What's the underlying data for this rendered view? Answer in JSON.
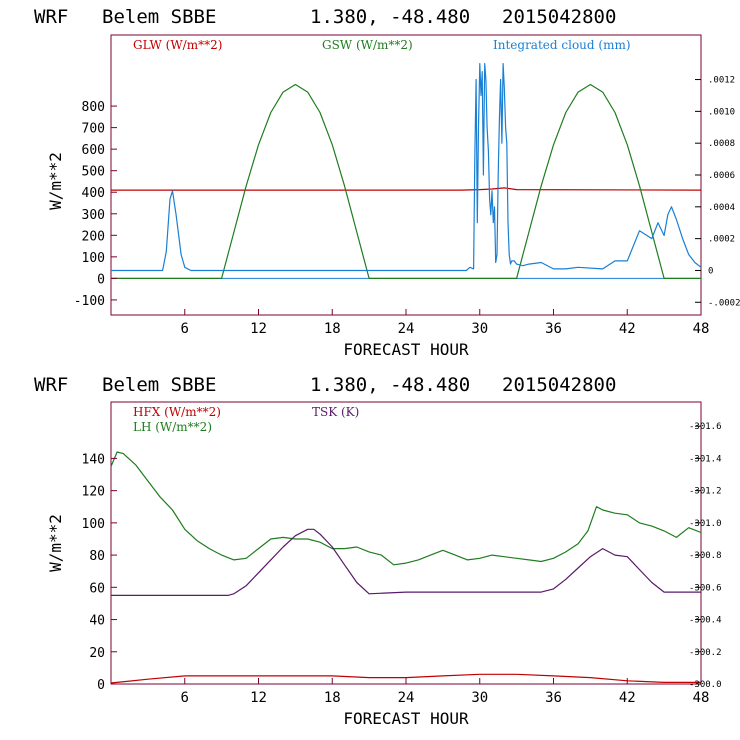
{
  "chart_data": [
    {
      "type": "line",
      "header": {
        "model": "WRF",
        "station": "Belem SBBE",
        "coords": "1.380, -48.480",
        "date": "2015042800"
      },
      "xlabel": "FORECAST HOUR",
      "ylabel": "W/m**2",
      "xlim": [
        0,
        48
      ],
      "ylim": [
        -170,
        1130
      ],
      "x_ticks": [
        "6",
        "12",
        "18",
        "24",
        "30",
        "36",
        "42",
        "48"
      ],
      "y_ticks": [
        "-100",
        "0",
        "100",
        "200",
        "300",
        "400",
        "500",
        "600",
        "700",
        "800"
      ],
      "right_ylim": [
        -0.00028,
        0.00148
      ],
      "right_ticks": [
        "-.0002",
        "0",
        ".0002",
        ".0004",
        ".0006",
        ".0008",
        ".0010",
        ".0012"
      ],
      "series": [
        {
          "name": "GLW (W/m**2)",
          "color": "#c00000",
          "x": [
            0,
            28.5,
            30,
            31,
            32,
            33,
            48
          ],
          "values": [
            410,
            410,
            412,
            415,
            420,
            412,
            410
          ]
        },
        {
          "name": "GSW (W/m**2)",
          "color": "#1e7d1e",
          "x": [
            0,
            9,
            10,
            11,
            12,
            13,
            14,
            15,
            16,
            17,
            18,
            19,
            20,
            21,
            33,
            34,
            35,
            36,
            37,
            38,
            39,
            40,
            41,
            42,
            43,
            44,
            45,
            48
          ],
          "values": [
            0,
            0,
            215,
            430,
            620,
            770,
            865,
            900,
            865,
            770,
            620,
            430,
            215,
            0,
            0,
            215,
            430,
            620,
            770,
            865,
            900,
            865,
            770,
            620,
            430,
            215,
            0,
            0
          ]
        },
        {
          "name": "Integrated cloud (mm)",
          "color": "#1a7fd4",
          "axis": "right",
          "x": [
            0,
            4.2,
            4.5,
            4.8,
            5.0,
            5.3,
            5.7,
            6.0,
            6.5,
            28.9,
            29.2,
            29.5,
            29.6,
            29.7,
            29.8,
            29.9,
            30.0,
            30.1,
            30.2,
            30.3,
            30.4,
            30.5,
            30.6,
            30.7,
            30.8,
            30.9,
            31.0,
            31.1,
            31.2,
            31.3,
            31.4,
            31.5,
            31.6,
            31.7,
            31.8,
            31.9,
            32.0,
            32.1,
            32.2,
            32.3,
            32.4,
            32.5,
            32.6,
            32.8,
            33.0,
            33.5,
            34,
            35,
            36,
            37,
            38,
            40,
            41,
            42,
            43,
            44,
            44.5,
            45,
            45.3,
            45.6,
            46,
            46.5,
            47,
            47.5,
            48
          ],
          "values": [
            0,
            0,
            0.00012,
            0.00045,
            0.0005,
            0.00035,
            0.0001,
            2e-05,
            0,
            0,
            2e-05,
            1e-05,
            0.0007,
            0.0012,
            0.0003,
            0.0009,
            0.0013,
            0.0011,
            0.00125,
            0.0006,
            0.0013,
            0.0012,
            0.0009,
            0.00075,
            0.00045,
            0.00035,
            0.0005,
            0.0003,
            0.0004,
            5e-05,
            0.0001,
            0.0006,
            0.00095,
            0.0012,
            0.0008,
            0.0013,
            0.00115,
            0.0009,
            0.0008,
            0.0003,
            0.0001,
            4e-05,
            6e-05,
            6e-05,
            4e-05,
            3e-05,
            4e-05,
            5e-05,
            1e-05,
            1e-05,
            2e-05,
            1e-05,
            6e-05,
            6e-05,
            0.00025,
            0.0002,
            0.0003,
            0.00022,
            0.00035,
            0.0004,
            0.00032,
            0.0002,
            0.0001,
            5e-05,
            2e-05
          ]
        }
      ]
    },
    {
      "type": "line",
      "header": {
        "model": "WRF",
        "station": "Belem SBBE",
        "coords": "1.380, -48.480",
        "date": "2015042800"
      },
      "xlabel": "FORECAST HOUR",
      "ylabel": "W/m**2",
      "xlim": [
        0,
        48
      ],
      "ylim": [
        0,
        175
      ],
      "x_ticks": [
        "6",
        "12",
        "18",
        "24",
        "30",
        "36",
        "42",
        "48"
      ],
      "y_ticks": [
        "0",
        "20",
        "40",
        "60",
        "80",
        "100",
        "120",
        "140"
      ],
      "right_ylim": [
        300.0,
        301.75
      ],
      "right_ticks": [
        "300.0",
        "300.2",
        "300.4",
        "300.6",
        "300.8",
        "301.0",
        "301.2",
        "301.4",
        "301.6"
      ],
      "series": [
        {
          "name": "HFX (W/m**2)",
          "color": "#c00000",
          "x": [
            0,
            3,
            6,
            9,
            12,
            15,
            18,
            21,
            24,
            27,
            30,
            33,
            36,
            39,
            42,
            45,
            48
          ],
          "values": [
            0,
            3,
            5,
            5,
            5,
            5,
            5,
            4,
            4,
            5,
            6,
            6,
            5,
            4,
            2,
            1,
            1
          ]
        },
        {
          "name": "LH (W/m**2)",
          "color": "#1e7d1e",
          "x": [
            0,
            0.5,
            1,
            2,
            3,
            4,
            5,
            6,
            7,
            8,
            9,
            10,
            11,
            12,
            13,
            14,
            15,
            16,
            17,
            18,
            19,
            20,
            21,
            22,
            23,
            24,
            25,
            26,
            27,
            28,
            29,
            30,
            31,
            32,
            33,
            34,
            35,
            36,
            37,
            38,
            38.8,
            39.5,
            40,
            41,
            42,
            43,
            44,
            45,
            46,
            47,
            48
          ],
          "values": [
            135,
            144,
            143,
            136,
            126,
            116,
            108,
            96,
            89,
            84,
            80,
            77,
            78,
            84,
            90,
            91,
            90,
            90,
            88,
            84,
            84,
            85,
            82,
            80,
            74,
            75,
            77,
            80,
            83,
            80,
            77,
            78,
            80,
            79,
            78,
            77,
            76,
            78,
            82,
            87,
            95,
            110,
            108,
            106,
            105,
            100,
            98,
            95,
            91,
            97,
            94
          ]
        },
        {
          "name": "TSK (K)",
          "color": "#5a1a6a",
          "axis": "right",
          "x": [
            0,
            9.5,
            10,
            11,
            12,
            13,
            14,
            15,
            16,
            16.5,
            17,
            18,
            19,
            20,
            21,
            24,
            30,
            35,
            36,
            37,
            38,
            39,
            40,
            41,
            42,
            43,
            44,
            45,
            48
          ],
          "values": [
            300.55,
            300.55,
            300.56,
            300.61,
            300.69,
            300.77,
            300.85,
            300.92,
            300.96,
            300.96,
            300.93,
            300.85,
            300.74,
            300.63,
            300.56,
            300.57,
            300.57,
            300.57,
            300.59,
            300.65,
            300.72,
            300.79,
            300.84,
            300.8,
            300.79,
            300.71,
            300.63,
            300.57,
            300.57
          ]
        }
      ]
    }
  ]
}
